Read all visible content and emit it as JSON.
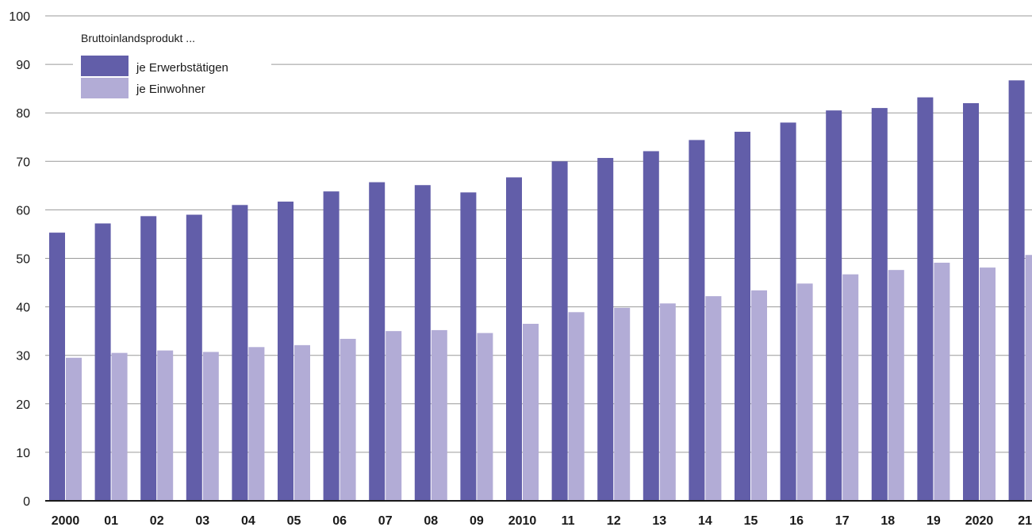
{
  "chart_data": {
    "type": "bar",
    "categories": [
      "2000",
      "01",
      "02",
      "03",
      "04",
      "05",
      "06",
      "07",
      "08",
      "09",
      "2010",
      "11",
      "12",
      "13",
      "14",
      "15",
      "16",
      "17",
      "18",
      "19",
      "2020",
      "21"
    ],
    "series": [
      {
        "name": "je Erwerbstätigen",
        "color": "#625ea9",
        "values": [
          55.3,
          57.2,
          58.7,
          59.0,
          61.0,
          61.7,
          63.8,
          65.7,
          65.1,
          63.6,
          66.7,
          70.0,
          70.7,
          72.1,
          74.4,
          76.1,
          78.0,
          80.5,
          81.0,
          83.2,
          82.0,
          86.7
        ]
      },
      {
        "name": "je Einwohner",
        "color": "#b2acd6",
        "values": [
          29.5,
          30.5,
          31.0,
          30.7,
          31.7,
          32.1,
          33.4,
          35.0,
          35.2,
          34.6,
          36.5,
          38.9,
          39.8,
          40.7,
          42.2,
          43.4,
          44.8,
          46.7,
          47.6,
          49.1,
          48.1,
          50.7
        ]
      }
    ],
    "legend_title": "Bruttoinlandsprodukt ...",
    "legend_position": "top-left",
    "ylim": [
      0,
      100
    ],
    "yticks": [
      0,
      10,
      20,
      30,
      40,
      50,
      60,
      70,
      80,
      90,
      100
    ],
    "grid": true,
    "gridline_color": "#9a9a9a",
    "axis_color": "#1a1a1a"
  }
}
